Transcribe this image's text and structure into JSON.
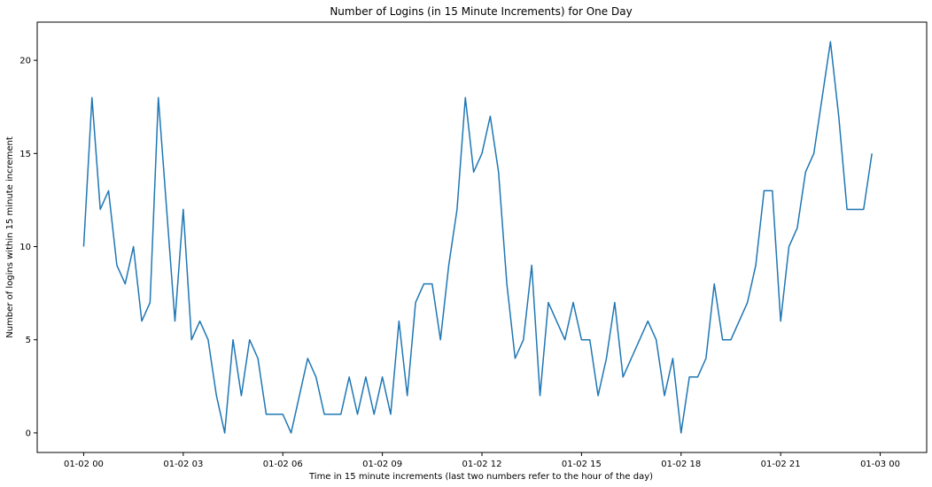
{
  "chart_data": {
    "type": "line",
    "title": "Number of Logins (in 15 Minute Increments) for One Day",
    "xlabel": "Time in 15 minute increments (last two numbers refer to the hour of the day)",
    "ylabel": "Number of logins within 15 minute increment",
    "x_start": "01-02 00:00",
    "x_step_minutes": 15,
    "x_ticks": [
      "01-02 00",
      "01-02 03",
      "01-02 06",
      "01-02 09",
      "01-02 12",
      "01-02 15",
      "01-02 18",
      "01-02 21",
      "01-03 00"
    ],
    "y_ticks": [
      "0",
      "5",
      "10",
      "15",
      "20"
    ],
    "ylim": [
      -1.05,
      22.05
    ],
    "xlim_hours": [
      -1.4,
      25.4
    ],
    "grid": false,
    "line_color": "#1f77b4",
    "series": [
      {
        "values": [
          10,
          18,
          12,
          13,
          9,
          8,
          10,
          6,
          7,
          18,
          12,
          6,
          12,
          5,
          6,
          5,
          2,
          0,
          5,
          2,
          5,
          4,
          1,
          1,
          1,
          0,
          2,
          4,
          3,
          1,
          1,
          1,
          3,
          1,
          3,
          1,
          3,
          1,
          6,
          2,
          7,
          8,
          8,
          5,
          9,
          12,
          18,
          14,
          15,
          17,
          14,
          8,
          4,
          5,
          9,
          2,
          7,
          6,
          5,
          7,
          5,
          5,
          2,
          4,
          7,
          3,
          4,
          5,
          6,
          5,
          2,
          4,
          0,
          3,
          3,
          4,
          8,
          5,
          5,
          6,
          7,
          9,
          13,
          13,
          6,
          10,
          11,
          14,
          15,
          18,
          21,
          17,
          12,
          12,
          12,
          15
        ]
      }
    ]
  }
}
